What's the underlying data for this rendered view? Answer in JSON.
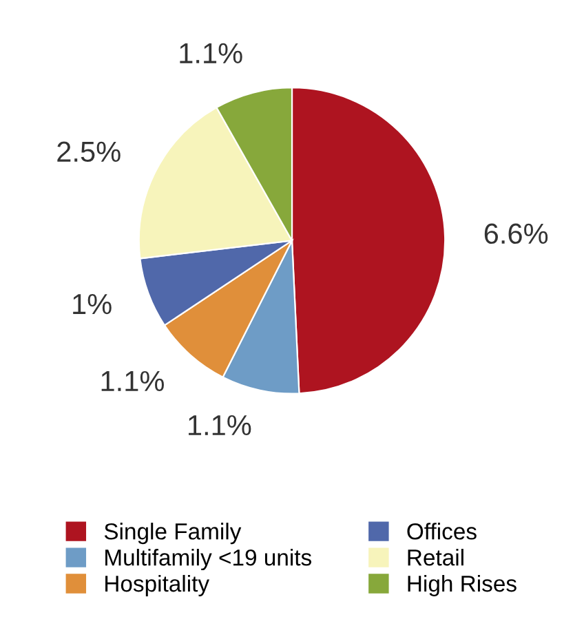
{
  "chart_data": {
    "type": "pie",
    "categories": [
      "Single Family",
      "Multifamily <19 units",
      "Hospitality",
      "Offices",
      "Retail",
      "High Rises"
    ],
    "values": [
      6.6,
      1.1,
      1.1,
      1,
      2.5,
      1.1
    ],
    "value_labels": [
      "6.6%",
      "1.1%",
      "1.1%",
      "1%",
      "2.5%",
      "1.1%"
    ],
    "colors": [
      "#ae1420",
      "#6e9cc6",
      "#e08f3a",
      "#5068aa",
      "#f7f4bb",
      "#87a83b"
    ],
    "legend": "bottom"
  }
}
